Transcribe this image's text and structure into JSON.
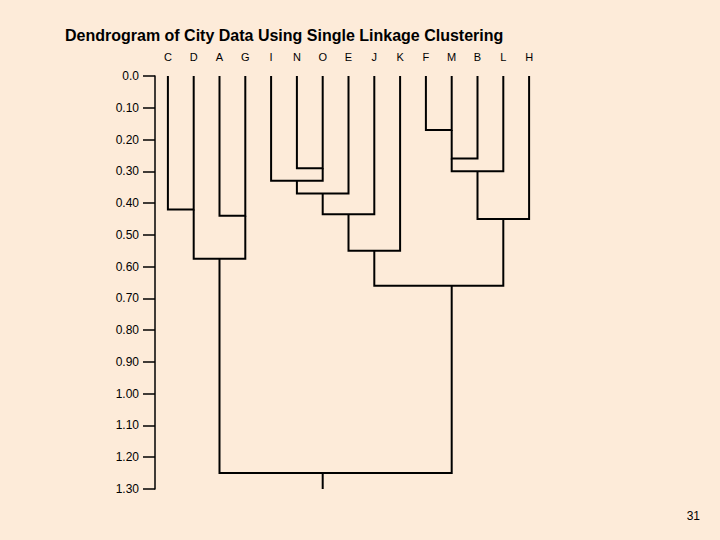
{
  "chart_data": {
    "type": "dendrogram",
    "title": "Dendrogram of City Data Using Single Linkage Clustering",
    "categories": [
      "C",
      "D",
      "A",
      "G",
      "I",
      "N",
      "O",
      "E",
      "J",
      "K",
      "F",
      "M",
      "B",
      "L",
      "H"
    ],
    "merges": [
      {
        "members": [
          "C",
          "D"
        ],
        "height": 0.42
      },
      {
        "members": [
          "A",
          "G"
        ],
        "height": 0.44
      },
      {
        "members": [
          0,
          1
        ],
        "height": 0.575
      },
      {
        "members": [
          "N",
          "O"
        ],
        "height": 0.29
      },
      {
        "members": [
          "I",
          3
        ],
        "height": 0.33
      },
      {
        "members": [
          4,
          "E"
        ],
        "height": 0.37
      },
      {
        "members": [
          5,
          "J"
        ],
        "height": 0.435
      },
      {
        "members": [
          6,
          "K"
        ],
        "height": 0.55
      },
      {
        "members": [
          "F",
          "M"
        ],
        "height": 0.17
      },
      {
        "members": [
          8,
          "B"
        ],
        "height": 0.26
      },
      {
        "members": [
          9,
          "L"
        ],
        "height": 0.3
      },
      {
        "members": [
          10,
          "H"
        ],
        "height": 0.45
      },
      {
        "members": [
          7,
          11
        ],
        "height": 0.66
      },
      {
        "members": [
          2,
          12
        ],
        "height": 1.25
      }
    ],
    "color": "#000000",
    "ylim": [
      0,
      1.3
    ],
    "yticks": [
      {
        "value": 0,
        "label": "0.0"
      },
      {
        "value": 0.1,
        "label": "0.10"
      },
      {
        "value": 0.2,
        "label": "0.20"
      },
      {
        "value": 0.3,
        "label": "0.30"
      },
      {
        "value": 0.4,
        "label": "0.40"
      },
      {
        "value": 0.5,
        "label": "0.50"
      },
      {
        "value": 0.6,
        "label": "0.60"
      },
      {
        "value": 0.7,
        "label": "0.70"
      },
      {
        "value": 0.8,
        "label": "0.80"
      },
      {
        "value": 0.9,
        "label": "0.90"
      },
      {
        "value": 1.0,
        "label": "1.00"
      },
      {
        "value": 1.1,
        "label": "1.10"
      },
      {
        "value": 1.2,
        "label": "1.20"
      },
      {
        "value": 1.3,
        "label": "1.30"
      }
    ],
    "grid": false,
    "page_number": "31"
  }
}
